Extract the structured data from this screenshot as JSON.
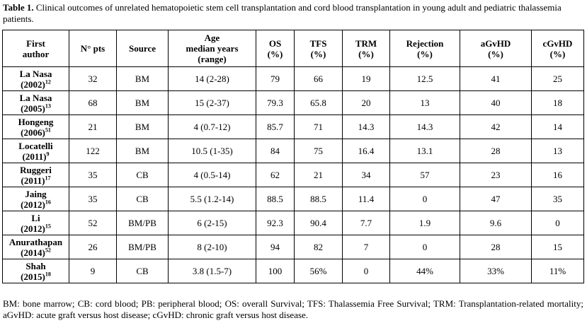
{
  "caption": {
    "label": "Table 1.",
    "text": " Clinical outcomes of unrelated hematopoietic stem cell transplantation and cord blood transplantation in young adult and pediatric thalassemia patients."
  },
  "headers": [
    [
      "First",
      "author"
    ],
    [
      "N° pts"
    ],
    [
      "Source"
    ],
    [
      "Age",
      "median years",
      "(range)"
    ],
    [
      "OS",
      "(%)"
    ],
    [
      "TFS",
      "(%)"
    ],
    [
      "TRM",
      "(%)"
    ],
    [
      "Rejection",
      "(%)"
    ],
    [
      "aGvHD",
      "(%)"
    ],
    [
      "cGvHD",
      "(%)"
    ]
  ],
  "rows": [
    {
      "author": "La Nasa",
      "year": "(2002)",
      "ref": "12",
      "pts": "32",
      "source": "BM",
      "age": "14 (2-28)",
      "os": "79",
      "tfs": "66",
      "trm": "19",
      "rejection": "12.5",
      "agvhd": "41",
      "cgvhd": "25"
    },
    {
      "author": "La Nasa",
      "year": "(2005)",
      "ref": "13",
      "pts": "68",
      "source": "BM",
      "age": "15 (2-37)",
      "os": "79.3",
      "tfs": "65.8",
      "trm": "20",
      "rejection": "13",
      "agvhd": "40",
      "cgvhd": "18"
    },
    {
      "author": "Hongeng",
      "year": "(2006)",
      "ref": "51",
      "pts": "21",
      "source": "BM",
      "age": "4 (0.7-12)",
      "os": "85.7",
      "tfs": "71",
      "trm": "14.3",
      "rejection": "14.3",
      "agvhd": "42",
      "cgvhd": "14"
    },
    {
      "author": "Locatelli",
      "year": "(2011)",
      "ref": "9",
      "pts": "122",
      "source": "BM",
      "age": "10.5 (1-35)",
      "os": "84",
      "tfs": "75",
      "trm": "16.4",
      "rejection": "13.1",
      "agvhd": "28",
      "cgvhd": "13"
    },
    {
      "author": "Ruggeri",
      "year": "(2011)",
      "ref": "17",
      "pts": "35",
      "source": "CB",
      "age": "4 (0.5-14)",
      "os": "62",
      "tfs": "21",
      "trm": "34",
      "rejection": "57",
      "agvhd": "23",
      "cgvhd": "16"
    },
    {
      "author": "Jaing",
      "year": "(2012)",
      "ref": "16",
      "pts": "35",
      "source": "CB",
      "age": "5.5 (1.2-14)",
      "os": "88.5",
      "tfs": "88.5",
      "trm": "11.4",
      "rejection": "0",
      "agvhd": "47",
      "cgvhd": "35"
    },
    {
      "author": "Li",
      "year": "(2012)",
      "ref": "15",
      "pts": "52",
      "source": "BM/PB",
      "age": "6 (2-15)",
      "os": "92.3",
      "tfs": "90.4",
      "trm": "7.7",
      "rejection": "1.9",
      "agvhd": "9.6",
      "cgvhd": "0"
    },
    {
      "author": "Anurathapan",
      "year": "(2014)",
      "ref": "52",
      "pts": "26",
      "source": "BM/PB",
      "age": "8 (2-10)",
      "os": "94",
      "tfs": "82",
      "trm": "7",
      "rejection": "0",
      "agvhd": "28",
      "cgvhd": "15"
    },
    {
      "author": "Shah",
      "year": "(2015)",
      "ref": "18",
      "pts": "9",
      "source": "CB",
      "age": "3.8 (1.5-7)",
      "os": "100",
      "tfs": "56%",
      "trm": "0",
      "rejection": "44%",
      "agvhd": "33%",
      "cgvhd": "11%"
    }
  ],
  "footnote": "BM: bone marrow; CB: cord blood; PB: peripheral blood; OS: overall Survival; TFS: Thalassemia Free Survival; TRM: Transplantation-related mortality; aGvHD: acute graft versus host disease; cGvHD: chronic graft versus host disease."
}
